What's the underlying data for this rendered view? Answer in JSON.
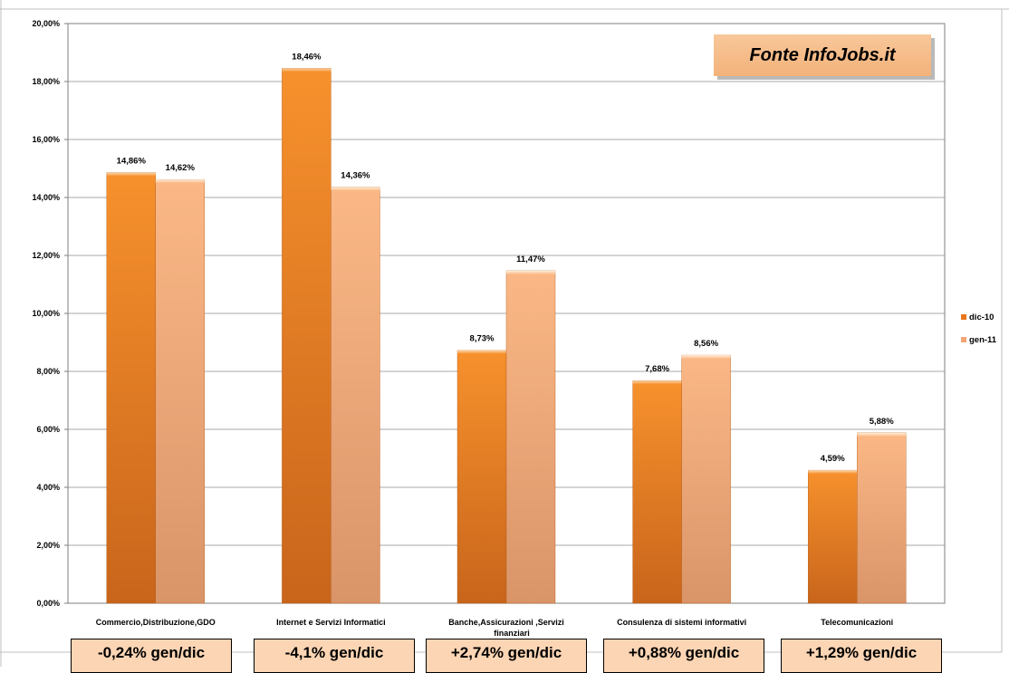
{
  "chart_data": {
    "type": "bar",
    "categories": [
      "Commercio,Distribuzione,GDO",
      "Internet e Servizi Informatici",
      "Banche,Assicurazioni  ,Servizi finanziari",
      "Consulenza di sistemi informativi",
      "Telecomunicazioni"
    ],
    "series": [
      {
        "name": "dic-10",
        "values": [
          14.86,
          18.46,
          8.73,
          7.68,
          4.59
        ],
        "labels": [
          "14,86%",
          "18,46%",
          "8,73%",
          "7,68%",
          "4,59%"
        ]
      },
      {
        "name": "gen-11",
        "values": [
          14.62,
          14.36,
          11.47,
          8.56,
          5.88
        ],
        "labels": [
          "14,62%",
          "14,36%",
          "11,47%",
          "8,56%",
          "5,88%"
        ]
      }
    ],
    "y_ticks": [
      "0,00%",
      "2,00%",
      "4,00%",
      "6,00%",
      "8,00%",
      "10,00%",
      "12,00%",
      "14,00%",
      "16,00%",
      "18,00%",
      "20,00%"
    ],
    "ylim": [
      0,
      20
    ],
    "grid": true,
    "legend_position": "right",
    "colors": {
      "dic-10": "#e8761c",
      "gen-11": "#f3a577"
    }
  },
  "source_label": "Fonte InfoJobs.it",
  "deltas": [
    "-0,24% gen/dic",
    "-4,1% gen/dic",
    "+2,74% gen/dic",
    "+0,88% gen/dic",
    "+1,29% gen/dic"
  ]
}
